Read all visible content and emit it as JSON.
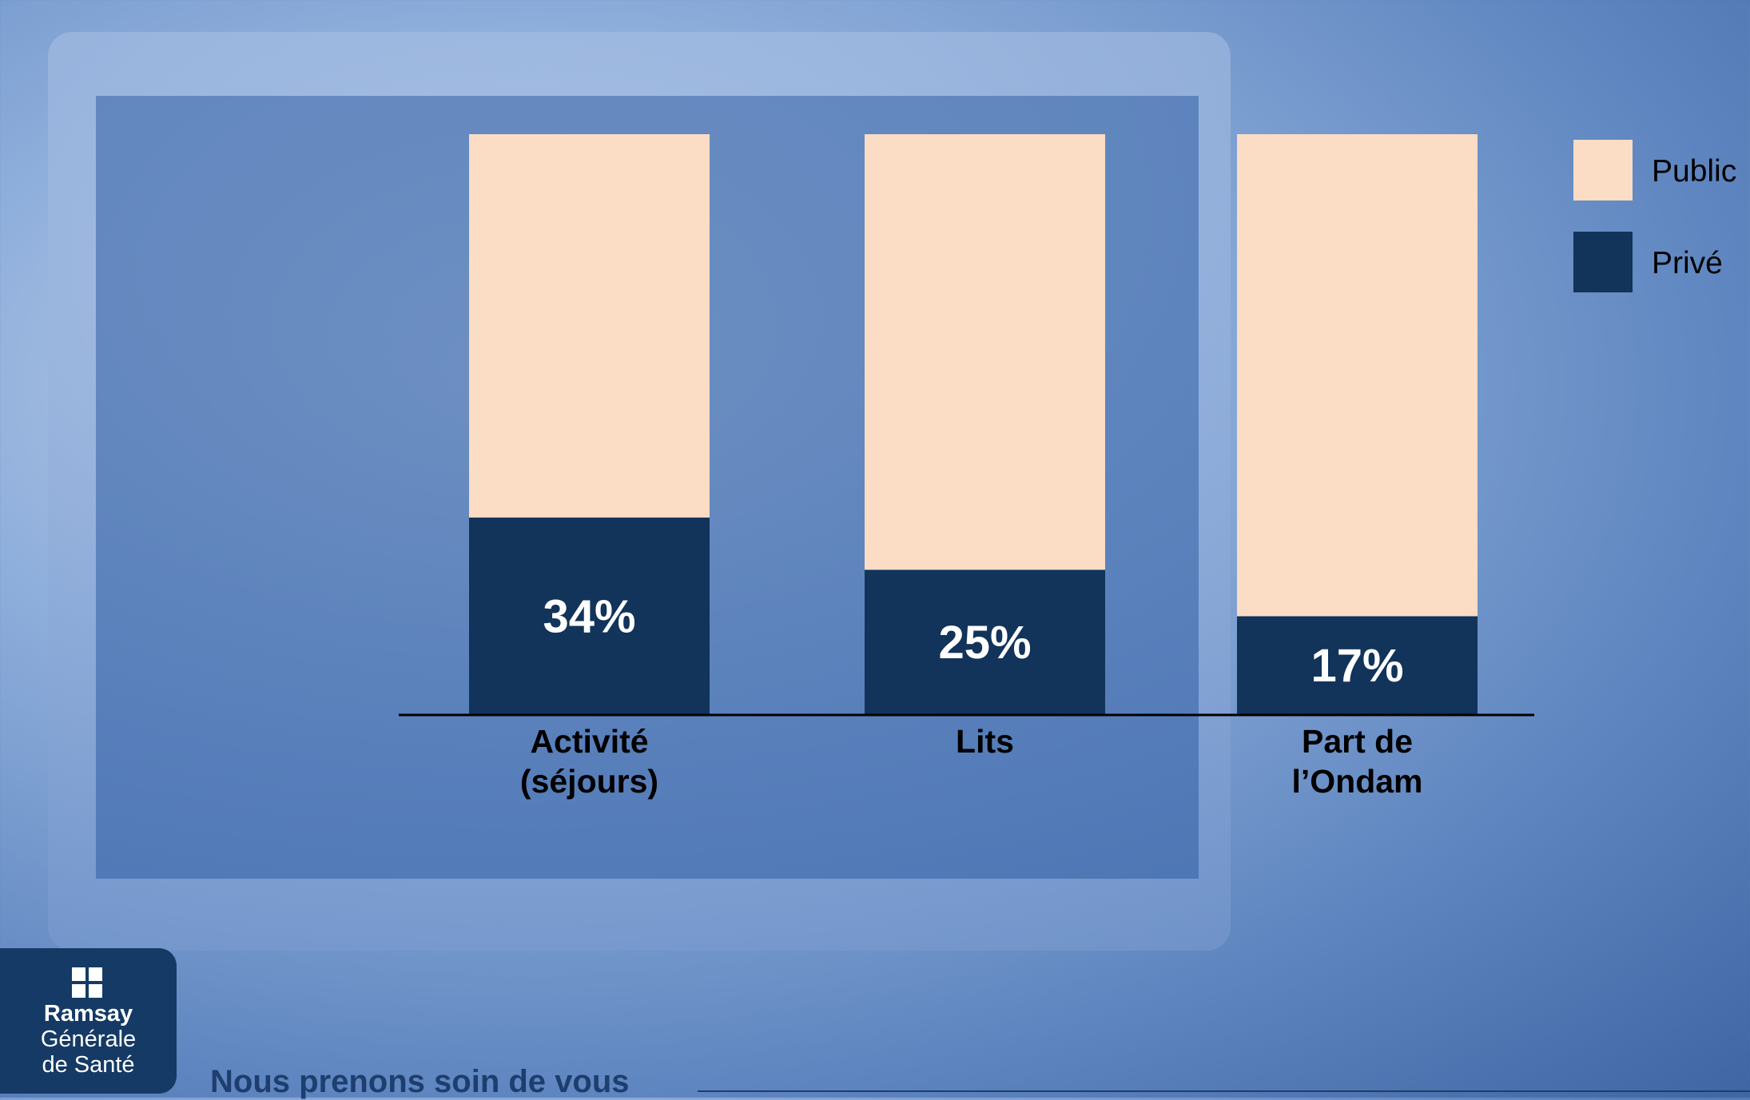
{
  "chart_data": {
    "type": "stacked-bar",
    "categories": [
      "Activité (séjours)",
      "Lits",
      "Part de l’Ondam"
    ],
    "series": [
      {
        "name": "Privé",
        "color": "#12335a",
        "values": [
          34,
          25,
          17
        ],
        "value_labels": [
          "34%",
          "25%",
          "17%"
        ]
      },
      {
        "name": "Public",
        "color": "#fbdcc5",
        "values": [
          66,
          75,
          83
        ]
      }
    ],
    "ylim": [
      0,
      100
    ],
    "legend": "top-right"
  },
  "logo": {
    "lines": [
      "Ramsay",
      "Générale",
      "de Santé"
    ]
  },
  "tagline": "Nous prenons soin de vous"
}
